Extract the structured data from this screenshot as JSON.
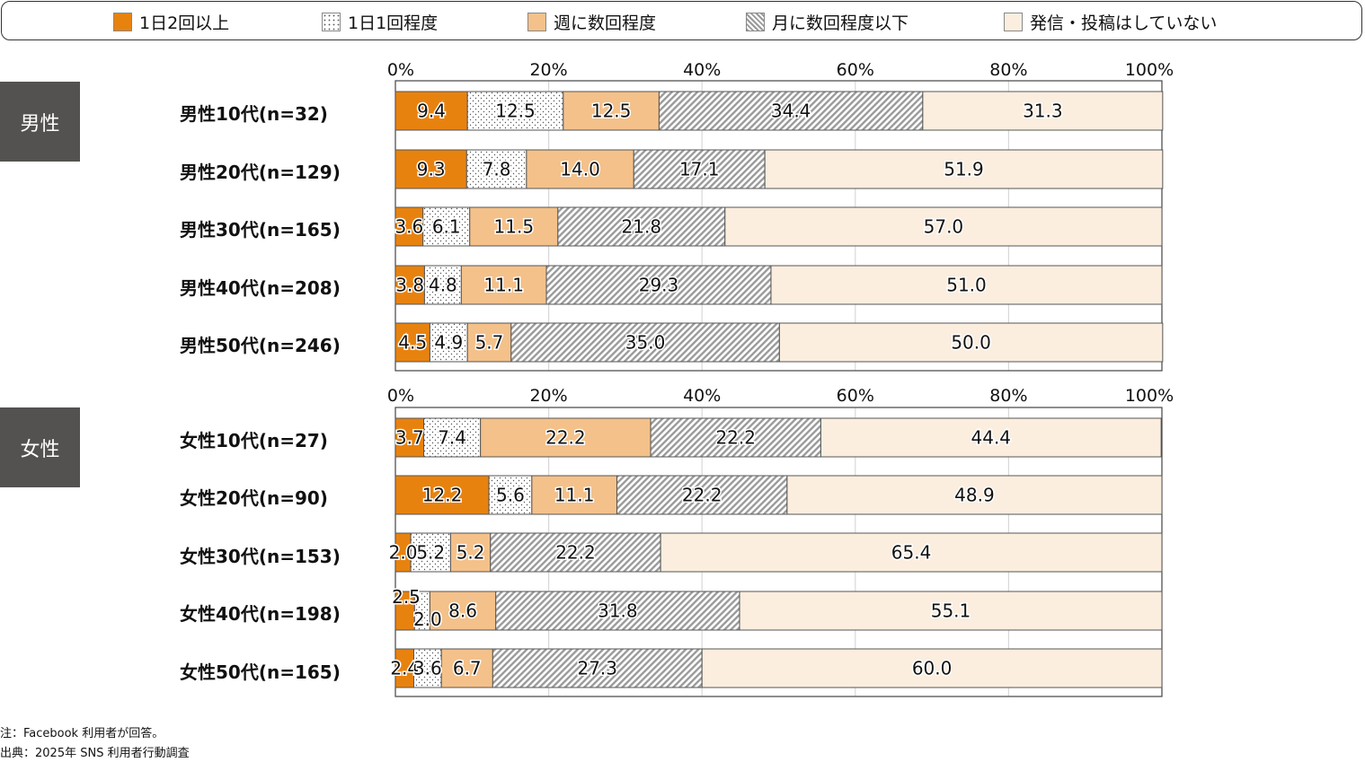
{
  "legend": [
    {
      "label": "1日2回以上",
      "color": "#E8820F",
      "pattern": "solid"
    },
    {
      "label": "1日1回程度",
      "color": "#FFFFFF",
      "pattern": "dots"
    },
    {
      "label": "週に数回程度",
      "color": "#F4C18A",
      "pattern": "solid"
    },
    {
      "label": "月に数回程度以下",
      "color": "#FFFFFF",
      "pattern": "hatch"
    },
    {
      "label": "発信・投稿はしていない",
      "color": "#FBEEDF",
      "pattern": "solid"
    }
  ],
  "groups": [
    {
      "label": "男性"
    },
    {
      "label": "女性"
    }
  ],
  "notes": {
    "note": "注：Facebook 利用者が回答。",
    "source": "出典：2025年 SNS 利用者行動調査"
  },
  "chart_data": [
    {
      "type": "bar",
      "orientation": "horizontal",
      "stacked": true,
      "group": "男性",
      "title": "",
      "xlabel": "",
      "ylabel": "",
      "xlim": [
        0,
        100
      ],
      "ticks": [
        "0%",
        "20%",
        "40%",
        "60%",
        "80%",
        "100%"
      ],
      "grid": true,
      "legend_position": "top",
      "categories": [
        "男性10代(n=32)",
        "男性20代(n=129)",
        "男性30代(n=165)",
        "男性40代(n=208)",
        "男性50代(n=246)"
      ],
      "series": [
        {
          "name": "1日2回以上",
          "values": [
            9.4,
            9.3,
            3.6,
            3.8,
            4.5
          ]
        },
        {
          "name": "1日1回程度",
          "values": [
            12.5,
            7.8,
            6.1,
            4.8,
            4.9
          ]
        },
        {
          "name": "週に数回程度",
          "values": [
            12.5,
            14.0,
            11.5,
            11.1,
            5.7
          ]
        },
        {
          "name": "月に数回程度以下",
          "values": [
            34.4,
            17.1,
            21.8,
            29.3,
            35.0
          ]
        },
        {
          "name": "発信・投稿はしていない",
          "values": [
            31.3,
            51.9,
            57.0,
            51.0,
            50.0
          ]
        }
      ]
    },
    {
      "type": "bar",
      "orientation": "horizontal",
      "stacked": true,
      "group": "女性",
      "title": "",
      "xlabel": "",
      "ylabel": "",
      "xlim": [
        0,
        100
      ],
      "ticks": [
        "0%",
        "20%",
        "40%",
        "60%",
        "80%",
        "100%"
      ],
      "grid": true,
      "legend_position": "top",
      "categories": [
        "女性10代(n=27)",
        "女性20代(n=90)",
        "女性30代(n=153)",
        "女性40代(n=198)",
        "女性50代(n=165)"
      ],
      "series": [
        {
          "name": "1日2回以上",
          "values": [
            3.7,
            12.2,
            2.0,
            2.5,
            2.4
          ]
        },
        {
          "name": "1日1回程度",
          "values": [
            7.4,
            5.6,
            5.2,
            2.0,
            3.6
          ]
        },
        {
          "name": "週に数回程度",
          "values": [
            22.2,
            11.1,
            5.2,
            8.6,
            6.7
          ]
        },
        {
          "name": "月に数回程度以下",
          "values": [
            22.2,
            22.2,
            22.2,
            31.8,
            27.3
          ]
        },
        {
          "name": "発信・投稿はしていない",
          "values": [
            44.4,
            48.9,
            65.4,
            55.1,
            60.0
          ]
        }
      ]
    }
  ]
}
